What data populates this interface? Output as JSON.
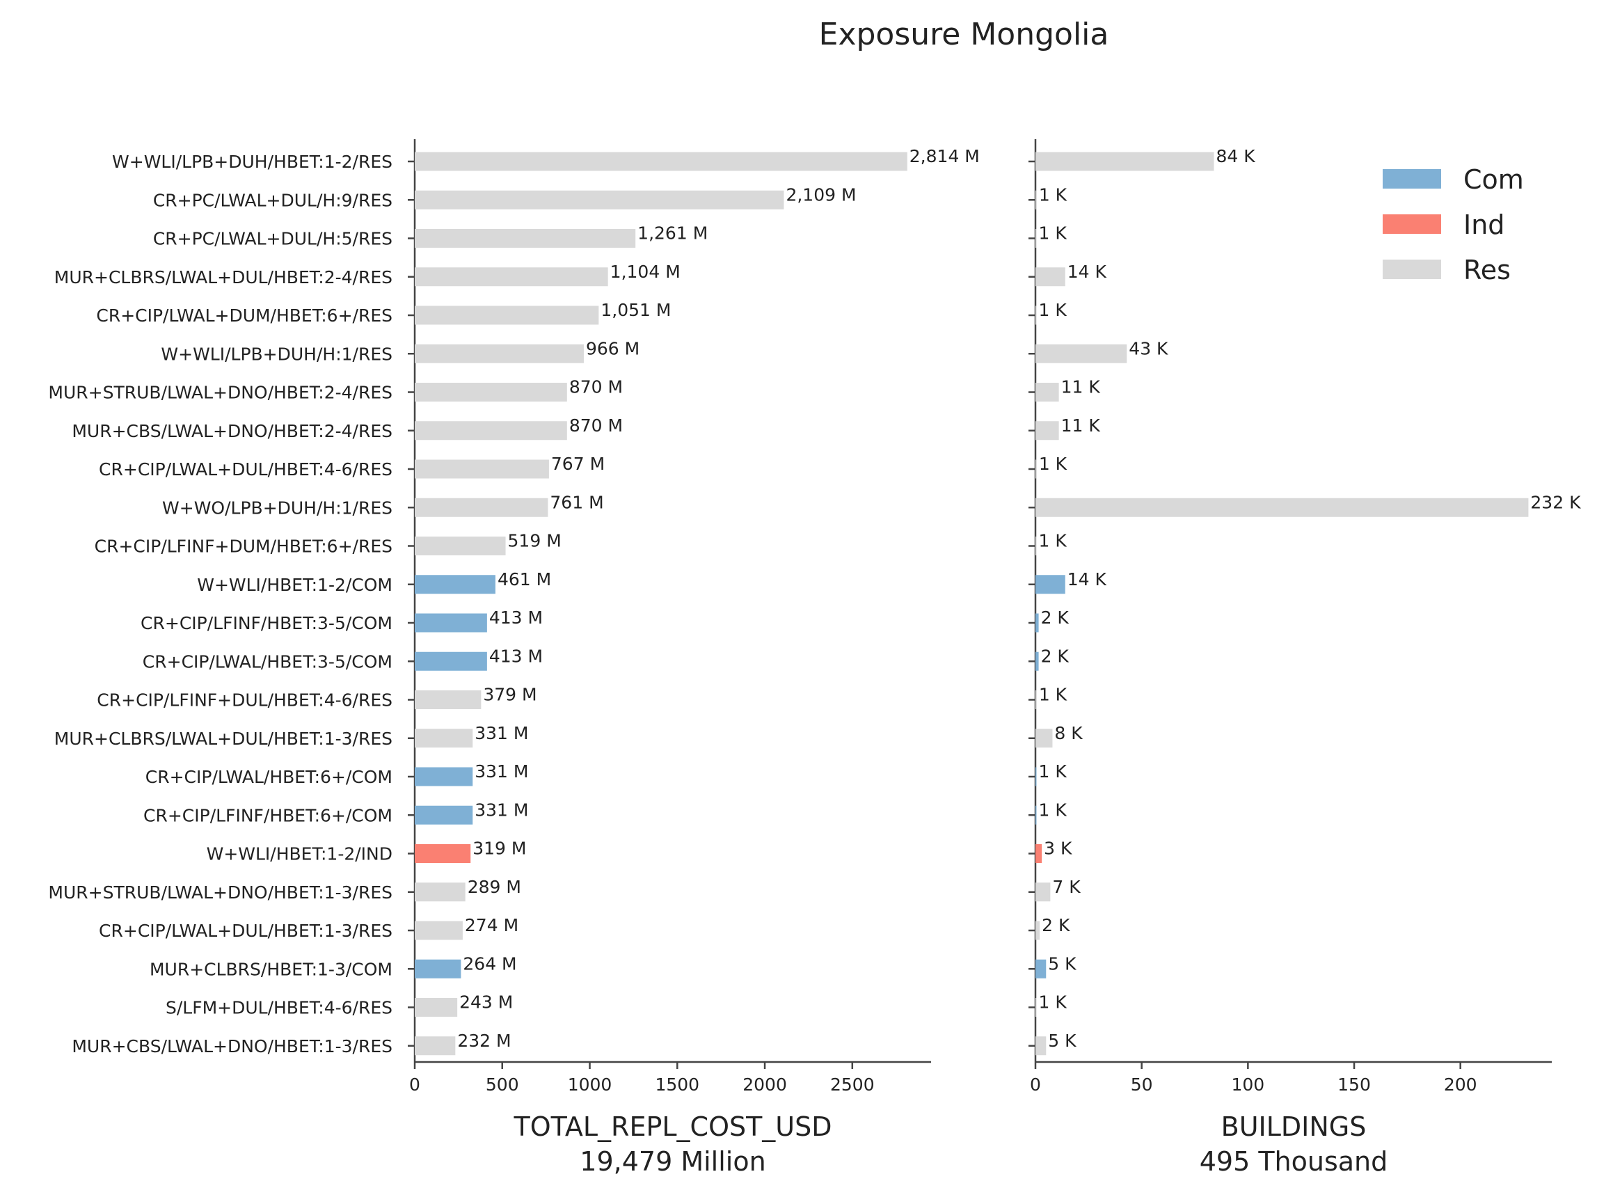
{
  "chart_data": {
    "type": "bar",
    "orientation": "horizontal",
    "title": "Exposure Mongolia",
    "categories": [
      "W+WLI/LPB+DUH/HBET:1-2/RES",
      "CR+PC/LWAL+DUL/H:9/RES",
      "CR+PC/LWAL+DUL/H:5/RES",
      "MUR+CLBRS/LWAL+DUL/HBET:2-4/RES",
      "CR+CIP/LWAL+DUM/HBET:6+/RES",
      "W+WLI/LPB+DUH/H:1/RES",
      "MUR+STRUB/LWAL+DNO/HBET:2-4/RES",
      "MUR+CBS/LWAL+DNO/HBET:2-4/RES",
      "CR+CIP/LWAL+DUL/HBET:4-6/RES",
      "W+WO/LPB+DUH/H:1/RES",
      "CR+CIP/LFINF+DUM/HBET:6+/RES",
      "W+WLI/HBET:1-2/COM",
      "CR+CIP/LFINF/HBET:3-5/COM",
      "CR+CIP/LWAL/HBET:3-5/COM",
      "CR+CIP/LFINF+DUL/HBET:4-6/RES",
      "MUR+CLBRS/LWAL+DUL/HBET:1-3/RES",
      "CR+CIP/LWAL/HBET:6+/COM",
      "CR+CIP/LFINF/HBET:6+/COM",
      "W+WLI/HBET:1-2/IND",
      "MUR+STRUB/LWAL+DNO/HBET:1-3/RES",
      "CR+CIP/LWAL+DUL/HBET:1-3/RES",
      "MUR+CLBRS/HBET:1-3/COM",
      "S/LFM+DUL/HBET:4-6/RES",
      "MUR+CBS/LWAL+DNO/HBET:1-3/RES"
    ],
    "occupancy": [
      "Res",
      "Res",
      "Res",
      "Res",
      "Res",
      "Res",
      "Res",
      "Res",
      "Res",
      "Res",
      "Res",
      "Com",
      "Com",
      "Com",
      "Res",
      "Res",
      "Com",
      "Com",
      "Ind",
      "Res",
      "Res",
      "Com",
      "Res",
      "Res"
    ],
    "panels": [
      {
        "xlabel": "TOTAL_REPL_COST_USD",
        "subtitle": "19,479 Million",
        "xlim": [
          0,
          2950
        ],
        "xticks": [
          0,
          500,
          1000,
          1500,
          2000,
          2500
        ],
        "xtick_labels": [
          "0",
          "500",
          "1000",
          "1500",
          "2000",
          "2500"
        ],
        "values": [
          2814,
          2109,
          1261,
          1104,
          1051,
          966,
          870,
          870,
          767,
          761,
          519,
          461,
          413,
          413,
          379,
          331,
          331,
          331,
          319,
          289,
          274,
          264,
          243,
          232
        ],
        "value_labels": [
          "2,814 M",
          "2,109 M",
          "1,261 M",
          "1,104 M",
          "1,051 M",
          "966 M",
          "870 M",
          "870 M",
          "767 M",
          "761 M",
          "519 M",
          "461 M",
          "413 M",
          "413 M",
          "379 M",
          "331 M",
          "331 M",
          "331 M",
          "319 M",
          "289 M",
          "274 M",
          "264 M",
          "243 M",
          "232 M"
        ]
      },
      {
        "xlabel": "BUILDINGS",
        "subtitle": "495 Thousand",
        "xlim": [
          0,
          243
        ],
        "xticks": [
          0,
          50,
          100,
          150,
          200
        ],
        "xtick_labels": [
          "0",
          "50",
          "100",
          "150",
          "200"
        ],
        "values": [
          84,
          0.6,
          0.5,
          14,
          0.5,
          43,
          11,
          11,
          0.6,
          232,
          0.5,
          14,
          1.5,
          1.5,
          0.6,
          8,
          0.5,
          0.5,
          3,
          7,
          2,
          5,
          0.5,
          5
        ],
        "value_labels": [
          "84 K",
          "1 K",
          "1 K",
          "14 K",
          "1 K",
          "43 K",
          "11 K",
          "11 K",
          "1 K",
          "232 K",
          "1 K",
          "14 K",
          "2 K",
          "2 K",
          "1 K",
          "8 K",
          "1 K",
          "1 K",
          "3 K",
          "7 K",
          "2 K",
          "5 K",
          "1 K",
          "5 K"
        ]
      }
    ],
    "legend": {
      "placement": "top-right",
      "entries": [
        {
          "name": "Com",
          "color": "#7fb0d5"
        },
        {
          "name": "Ind",
          "color": "#fa8072"
        },
        {
          "name": "Res",
          "color": "#d9d9d9"
        }
      ]
    },
    "grid": false
  }
}
